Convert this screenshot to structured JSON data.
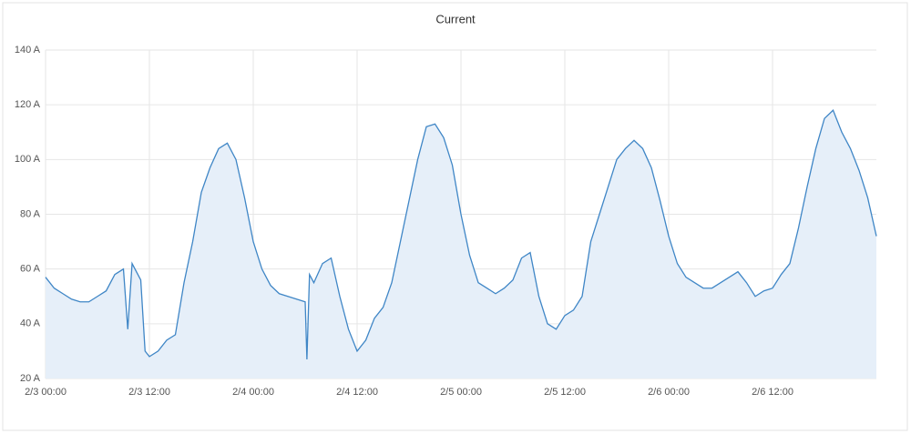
{
  "chart_data": {
    "type": "line",
    "title": "Current",
    "x": [
      0,
      1,
      2,
      3,
      4,
      5,
      6,
      7,
      8,
      9,
      9.5,
      10,
      11,
      11.5,
      12,
      13,
      14,
      15,
      16,
      17,
      18,
      19,
      20,
      21,
      22,
      23,
      24,
      25,
      26,
      27,
      28,
      29,
      30,
      30.2,
      30.5,
      31,
      32,
      33,
      34,
      35,
      36,
      37,
      38,
      39,
      40,
      41,
      42,
      43,
      44,
      45,
      46,
      47,
      48,
      49,
      50,
      51,
      52,
      53,
      54,
      55,
      56,
      57,
      58,
      59,
      60,
      61,
      62,
      63,
      64,
      65,
      66,
      67,
      68,
      69,
      70,
      71,
      72,
      73,
      74,
      75,
      76,
      77,
      78,
      79,
      80,
      81,
      82,
      83,
      84,
      85,
      86,
      87,
      88,
      89,
      90,
      91,
      92,
      93,
      94,
      95,
      96
    ],
    "values": [
      57,
      53,
      51,
      49,
      48,
      48,
      50,
      52,
      58,
      60,
      38,
      62,
      56,
      30,
      28,
      30,
      34,
      36,
      55,
      70,
      88,
      97,
      104,
      106,
      100,
      86,
      70,
      60,
      54,
      51,
      50,
      49,
      48,
      27,
      58,
      55,
      62,
      64,
      50,
      38,
      30,
      34,
      42,
      46,
      55,
      70,
      85,
      100,
      112,
      113,
      108,
      98,
      80,
      65,
      55,
      53,
      51,
      53,
      56,
      64,
      66,
      50,
      40,
      38,
      43,
      45,
      50,
      70,
      80,
      90,
      100,
      104,
      107,
      104,
      97,
      85,
      72,
      62,
      57,
      55,
      53,
      53,
      55,
      57,
      59,
      55,
      50,
      52,
      53,
      58,
      62,
      75,
      90,
      104,
      115,
      118,
      110,
      104,
      96,
      86,
      72
    ],
    "color": "#3f86c6",
    "fill": "#e6eff9",
    "xlim": [
      0,
      96
    ],
    "xticks": [
      {
        "value": 0,
        "label": "2/3 00:00"
      },
      {
        "value": 12,
        "label": "2/3 12:00"
      },
      {
        "value": 24,
        "label": "2/4 00:00"
      },
      {
        "value": 36,
        "label": "2/4 12:00"
      },
      {
        "value": 48,
        "label": "2/5 00:00"
      },
      {
        "value": 60,
        "label": "2/5 12:00"
      },
      {
        "value": 72,
        "label": "2/6 00:00"
      },
      {
        "value": 84,
        "label": "2/6 12:00"
      }
    ],
    "ylim": [
      20,
      140
    ],
    "yticks": [
      {
        "value": 20,
        "label": "20 A"
      },
      {
        "value": 40,
        "label": "40 A"
      },
      {
        "value": 60,
        "label": "60 A"
      },
      {
        "value": 80,
        "label": "80 A"
      },
      {
        "value": 100,
        "label": "100 A"
      },
      {
        "value": 120,
        "label": "120 A"
      },
      {
        "value": 140,
        "label": "140 A"
      }
    ],
    "grid": true
  }
}
